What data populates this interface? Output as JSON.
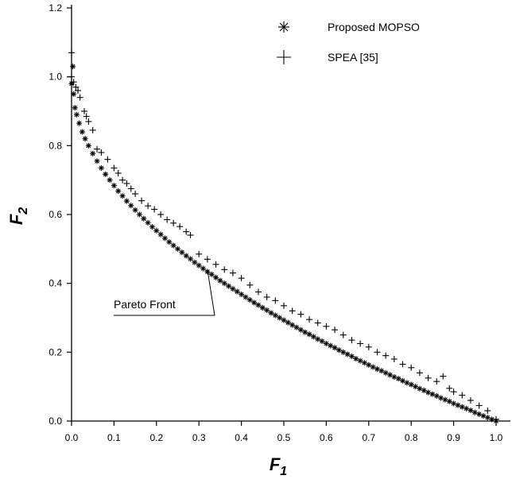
{
  "chart_data": {
    "type": "scatter",
    "xlabel": {
      "main": "F",
      "sub": "1"
    },
    "ylabel": {
      "main": "F",
      "sub": "2"
    },
    "xlim": [
      0,
      1
    ],
    "ylim": [
      0,
      1.2
    ],
    "x_ticks": [
      {
        "value": 0.0,
        "label": "0.0"
      },
      {
        "value": 0.1,
        "label": "0.1"
      },
      {
        "value": 0.2,
        "label": "0.2"
      },
      {
        "value": 0.3,
        "label": "0.3"
      },
      {
        "value": 0.4,
        "label": "0.4"
      },
      {
        "value": 0.5,
        "label": "0.5"
      },
      {
        "value": 0.6,
        "label": "0.6"
      },
      {
        "value": 0.7,
        "label": "0.7"
      },
      {
        "value": 0.8,
        "label": "0.8"
      },
      {
        "value": 0.9,
        "label": "0.9"
      },
      {
        "value": 1.0,
        "label": "1.0"
      }
    ],
    "y_ticks": [
      {
        "value": 0.0,
        "label": "0.0"
      },
      {
        "value": 0.2,
        "label": "0.2"
      },
      {
        "value": 0.4,
        "label": "0.4"
      },
      {
        "value": 0.6,
        "label": "0.6"
      },
      {
        "value": 0.8,
        "label": "0.8"
      },
      {
        "value": 1.0,
        "label": "1.0"
      },
      {
        "value": 1.2,
        "label": "1.2"
      }
    ],
    "grid": false,
    "legend_position": "top-right",
    "series": [
      {
        "name": "Proposed MOPSO",
        "marker": "star",
        "points": [
          [
            0.0,
            0.98
          ],
          [
            0.003,
            1.03
          ],
          [
            0.005,
            0.95
          ],
          [
            0.008,
            0.91
          ],
          [
            0.012,
            0.89
          ],
          [
            0.018,
            0.865
          ],
          [
            0.025,
            0.84
          ],
          [
            0.032,
            0.82
          ],
          [
            0.04,
            0.8
          ],
          [
            0.05,
            0.777
          ],
          [
            0.06,
            0.755
          ],
          [
            0.07,
            0.735
          ],
          [
            0.08,
            0.717
          ],
          [
            0.09,
            0.7
          ],
          [
            0.1,
            0.684
          ],
          [
            0.11,
            0.668
          ],
          [
            0.12,
            0.654
          ],
          [
            0.13,
            0.639
          ],
          [
            0.14,
            0.626
          ],
          [
            0.15,
            0.613
          ],
          [
            0.16,
            0.6
          ],
          [
            0.17,
            0.588
          ],
          [
            0.18,
            0.576
          ],
          [
            0.19,
            0.564
          ],
          [
            0.2,
            0.553
          ],
          [
            0.21,
            0.542
          ],
          [
            0.22,
            0.531
          ],
          [
            0.23,
            0.52
          ],
          [
            0.24,
            0.51
          ],
          [
            0.25,
            0.5
          ],
          [
            0.26,
            0.49
          ],
          [
            0.27,
            0.48
          ],
          [
            0.28,
            0.471
          ],
          [
            0.29,
            0.461
          ],
          [
            0.3,
            0.452
          ],
          [
            0.31,
            0.443
          ],
          [
            0.32,
            0.434
          ],
          [
            0.33,
            0.426
          ],
          [
            0.34,
            0.417
          ],
          [
            0.35,
            0.408
          ],
          [
            0.36,
            0.4
          ],
          [
            0.37,
            0.392
          ],
          [
            0.38,
            0.384
          ],
          [
            0.39,
            0.376
          ],
          [
            0.4,
            0.368
          ],
          [
            0.41,
            0.36
          ],
          [
            0.42,
            0.352
          ],
          [
            0.43,
            0.344
          ],
          [
            0.44,
            0.337
          ],
          [
            0.45,
            0.329
          ],
          [
            0.46,
            0.322
          ],
          [
            0.47,
            0.314
          ],
          [
            0.48,
            0.307
          ],
          [
            0.49,
            0.3
          ],
          [
            0.5,
            0.293
          ],
          [
            0.51,
            0.286
          ],
          [
            0.52,
            0.279
          ],
          [
            0.53,
            0.272
          ],
          [
            0.54,
            0.265
          ],
          [
            0.55,
            0.258
          ],
          [
            0.56,
            0.252
          ],
          [
            0.57,
            0.245
          ],
          [
            0.58,
            0.238
          ],
          [
            0.59,
            0.232
          ],
          [
            0.6,
            0.225
          ],
          [
            0.61,
            0.219
          ],
          [
            0.62,
            0.213
          ],
          [
            0.63,
            0.206
          ],
          [
            0.64,
            0.2
          ],
          [
            0.65,
            0.194
          ],
          [
            0.66,
            0.188
          ],
          [
            0.67,
            0.181
          ],
          [
            0.68,
            0.175
          ],
          [
            0.69,
            0.169
          ],
          [
            0.7,
            0.163
          ],
          [
            0.71,
            0.157
          ],
          [
            0.72,
            0.151
          ],
          [
            0.73,
            0.146
          ],
          [
            0.74,
            0.14
          ],
          [
            0.75,
            0.134
          ],
          [
            0.76,
            0.128
          ],
          [
            0.77,
            0.123
          ],
          [
            0.78,
            0.117
          ],
          [
            0.79,
            0.111
          ],
          [
            0.8,
            0.106
          ],
          [
            0.81,
            0.1
          ],
          [
            0.82,
            0.094
          ],
          [
            0.83,
            0.089
          ],
          [
            0.84,
            0.083
          ],
          [
            0.85,
            0.078
          ],
          [
            0.86,
            0.073
          ],
          [
            0.87,
            0.067
          ],
          [
            0.88,
            0.062
          ],
          [
            0.89,
            0.057
          ],
          [
            0.9,
            0.051
          ],
          [
            0.91,
            0.046
          ],
          [
            0.92,
            0.041
          ],
          [
            0.93,
            0.036
          ],
          [
            0.94,
            0.031
          ],
          [
            0.95,
            0.025
          ],
          [
            0.96,
            0.02
          ],
          [
            0.97,
            0.015
          ],
          [
            0.98,
            0.01
          ],
          [
            0.99,
            0.005
          ],
          [
            1.0,
            0.0
          ]
        ]
      },
      {
        "name": "SPEA [35]",
        "marker": "plus",
        "points": [
          [
            0.0,
            1.07
          ],
          [
            0.0,
            1.0
          ],
          [
            0.005,
            0.985
          ],
          [
            0.01,
            0.97
          ],
          [
            0.015,
            0.96
          ],
          [
            0.02,
            0.94
          ],
          [
            0.03,
            0.9
          ],
          [
            0.035,
            0.885
          ],
          [
            0.04,
            0.87
          ],
          [
            0.05,
            0.845
          ],
          [
            0.06,
            0.79
          ],
          [
            0.07,
            0.78
          ],
          [
            0.085,
            0.76
          ],
          [
            0.1,
            0.735
          ],
          [
            0.11,
            0.72
          ],
          [
            0.12,
            0.7
          ],
          [
            0.13,
            0.69
          ],
          [
            0.14,
            0.675
          ],
          [
            0.15,
            0.66
          ],
          [
            0.165,
            0.64
          ],
          [
            0.18,
            0.625
          ],
          [
            0.195,
            0.615
          ],
          [
            0.21,
            0.6
          ],
          [
            0.225,
            0.585
          ],
          [
            0.24,
            0.575
          ],
          [
            0.255,
            0.565
          ],
          [
            0.27,
            0.55
          ],
          [
            0.28,
            0.54
          ],
          [
            0.3,
            0.485
          ],
          [
            0.32,
            0.47
          ],
          [
            0.34,
            0.455
          ],
          [
            0.36,
            0.44
          ],
          [
            0.38,
            0.43
          ],
          [
            0.4,
            0.415
          ],
          [
            0.42,
            0.395
          ],
          [
            0.44,
            0.375
          ],
          [
            0.46,
            0.36
          ],
          [
            0.48,
            0.35
          ],
          [
            0.5,
            0.335
          ],
          [
            0.52,
            0.32
          ],
          [
            0.54,
            0.31
          ],
          [
            0.56,
            0.295
          ],
          [
            0.58,
            0.285
          ],
          [
            0.6,
            0.275
          ],
          [
            0.62,
            0.265
          ],
          [
            0.64,
            0.25
          ],
          [
            0.66,
            0.235
          ],
          [
            0.68,
            0.225
          ],
          [
            0.7,
            0.215
          ],
          [
            0.72,
            0.2
          ],
          [
            0.74,
            0.19
          ],
          [
            0.76,
            0.18
          ],
          [
            0.78,
            0.165
          ],
          [
            0.8,
            0.155
          ],
          [
            0.82,
            0.14
          ],
          [
            0.84,
            0.125
          ],
          [
            0.86,
            0.115
          ],
          [
            0.875,
            0.13
          ],
          [
            0.89,
            0.095
          ],
          [
            0.9,
            0.085
          ],
          [
            0.92,
            0.075
          ],
          [
            0.94,
            0.06
          ],
          [
            0.96,
            0.045
          ],
          [
            0.98,
            0.03
          ],
          [
            1.0,
            0.005
          ]
        ]
      }
    ],
    "annotations": [
      {
        "text": "Pareto Front",
        "target": [
          0.32,
          0.44
        ]
      }
    ]
  }
}
